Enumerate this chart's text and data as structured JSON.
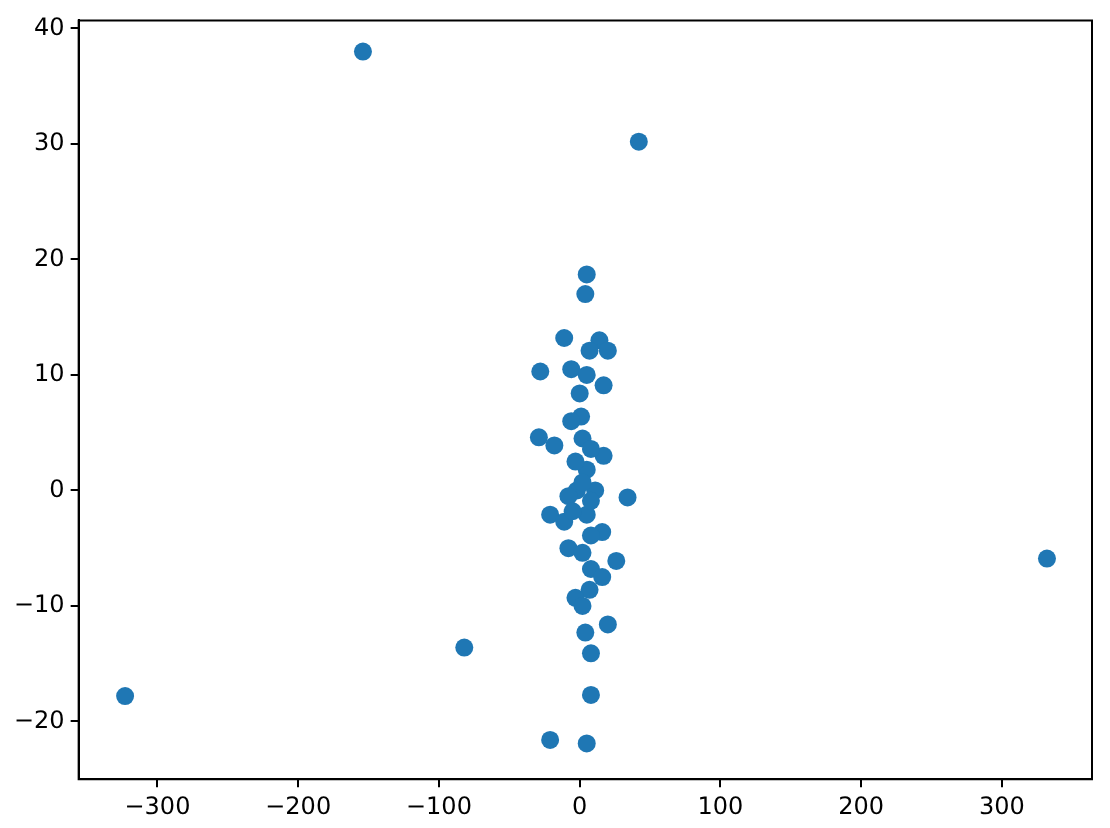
{
  "chart_data": {
    "type": "scatter",
    "color": "#1f77b4",
    "marker": "circle",
    "grid": false,
    "legend": false,
    "x": [
      -154,
      42,
      332,
      -323,
      -82,
      -21,
      5,
      8,
      8,
      4,
      20,
      26,
      34,
      5,
      4,
      -11,
      14,
      20,
      7,
      -28,
      -6,
      5,
      17,
      0,
      1,
      -6,
      -29,
      -18,
      17,
      2,
      8,
      5,
      -2,
      11,
      -8,
      5,
      -21,
      -11,
      16,
      8,
      -8,
      2,
      8,
      16,
      7,
      -3,
      2,
      -5,
      2,
      -3,
      8
    ],
    "values": [
      38.0,
      30.2,
      -5.9,
      -17.8,
      -13.6,
      -21.6,
      -21.9,
      -17.7,
      -14.1,
      -12.3,
      -11.6,
      -6.1,
      -0.6,
      18.7,
      17.0,
      13.2,
      13.0,
      12.1,
      12.1,
      10.3,
      10.5,
      10.0,
      9.1,
      8.4,
      6.4,
      6.0,
      4.6,
      3.9,
      3.0,
      4.5,
      3.6,
      1.8,
      0,
      0,
      -0.5,
      -2.1,
      -2.1,
      -2.7,
      -3.6,
      -3.9,
      -5.0,
      -5.4,
      -6.8,
      -7.5,
      -8.6,
      -9.3,
      -10.0,
      -1.8,
      0.7,
      2.5,
      -0.9
    ],
    "xlim": [
      -356,
      364
    ],
    "xticks": [
      -300,
      -200,
      -100,
      0,
      100,
      200,
      300
    ],
    "ylim": [
      -25,
      40.7
    ],
    "yticks": [
      -20,
      -10,
      0,
      10,
      20,
      30,
      40
    ]
  }
}
